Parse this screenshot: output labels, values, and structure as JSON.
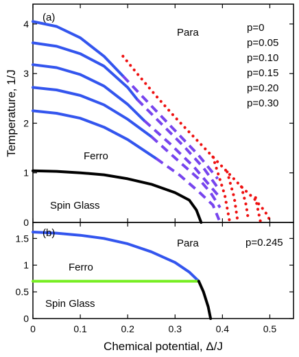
{
  "chart_data": [
    {
      "type": "line",
      "panel_label": "(a)",
      "xlabel": "",
      "ylabel": "Temperature, 1/J",
      "xlim": [
        0,
        0.55
      ],
      "ylim": [
        0,
        4.4
      ],
      "x_ticks": [
        "0",
        "0.1",
        "0.2",
        "0.3",
        "0.4",
        "0.5"
      ],
      "y_ticks": [
        "0",
        "1",
        "2",
        "3",
        "4"
      ],
      "legend": [
        "p=0",
        "p=0.05",
        "p=0.10",
        "p=0.15",
        "p=0.20",
        "p=0.30"
      ],
      "annotations": [
        "Para",
        "Ferro",
        "Spin Glass"
      ],
      "colors": {
        "second_order": "#3355ee",
        "first_order": "#7744ee",
        "tricritical_line": "#ee1111",
        "spin_glass_boundary": "#000000"
      },
      "series": [
        {
          "style": "solid",
          "color": "#3355ee",
          "x": [
            0,
            0.05,
            0.1,
            0.15,
            0.19
          ],
          "y": [
            4.05,
            3.95,
            3.72,
            3.35,
            2.95
          ]
        },
        {
          "style": "solid",
          "color": "#3355ee",
          "x": [
            0,
            0.05,
            0.1,
            0.15,
            0.2,
            0.22
          ],
          "y": [
            3.62,
            3.55,
            3.4,
            3.15,
            2.72,
            2.48
          ]
        },
        {
          "style": "solid",
          "color": "#3355ee",
          "x": [
            0,
            0.05,
            0.1,
            0.15,
            0.2,
            0.235
          ],
          "y": [
            3.18,
            3.12,
            2.98,
            2.75,
            2.38,
            2.05
          ]
        },
        {
          "style": "solid",
          "color": "#3355ee",
          "x": [
            0,
            0.05,
            0.1,
            0.15,
            0.2,
            0.25
          ],
          "y": [
            2.72,
            2.67,
            2.56,
            2.37,
            2.08,
            1.73
          ]
        },
        {
          "style": "solid",
          "color": "#3355ee",
          "x": [
            0,
            0.05,
            0.1,
            0.15,
            0.2,
            0.26
          ],
          "y": [
            2.25,
            2.2,
            2.1,
            1.92,
            1.67,
            1.29
          ]
        },
        {
          "style": "dashed",
          "color": "#7744ee",
          "x": [
            0.19,
            0.25,
            0.3,
            0.35,
            0.39
          ],
          "y": [
            2.95,
            2.35,
            1.85,
            1.35,
            0.88
          ]
        },
        {
          "style": "dashed",
          "color": "#7744ee",
          "x": [
            0.22,
            0.27,
            0.32,
            0.36,
            0.39
          ],
          "y": [
            2.48,
            2.0,
            1.52,
            1.1,
            0.7
          ]
        },
        {
          "style": "dashed",
          "color": "#7744ee",
          "x": [
            0.235,
            0.29,
            0.34,
            0.37,
            0.395
          ],
          "y": [
            2.05,
            1.58,
            1.12,
            0.78,
            0.5
          ]
        },
        {
          "style": "dashed",
          "color": "#7744ee",
          "x": [
            0.25,
            0.3,
            0.35,
            0.375,
            0.395
          ],
          "y": [
            1.73,
            1.3,
            0.88,
            0.6,
            0.3
          ]
        },
        {
          "style": "dashed",
          "color": "#7744ee",
          "x": [
            0.26,
            0.31,
            0.35,
            0.38,
            0.393
          ],
          "y": [
            1.29,
            0.95,
            0.62,
            0.35,
            0.05
          ]
        },
        {
          "style": "dotted",
          "color": "#ee1111",
          "x": [
            0.19,
            0.22,
            0.26,
            0.3,
            0.34,
            0.38,
            0.41,
            0.44,
            0.47,
            0.49,
            0.5
          ],
          "y": [
            3.35,
            3.0,
            2.55,
            2.12,
            1.72,
            1.32,
            1.02,
            0.72,
            0.45,
            0.22,
            0.05
          ]
        },
        {
          "style": "dotted",
          "color": "#ee1111",
          "x": [
            0.47,
            0.475,
            0.48
          ],
          "y": [
            0.5,
            0.25,
            0.03
          ]
        },
        {
          "style": "dotted",
          "color": "#ee1111",
          "x": [
            0.44,
            0.45,
            0.455
          ],
          "y": [
            0.72,
            0.35,
            0.03
          ]
        },
        {
          "style": "dotted",
          "color": "#ee1111",
          "x": [
            0.41,
            0.425,
            0.432
          ],
          "y": [
            1.02,
            0.5,
            0.03
          ]
        },
        {
          "style": "dotted",
          "color": "#ee1111",
          "x": [
            0.38,
            0.405,
            0.415
          ],
          "y": [
            1.32,
            0.55,
            0.03
          ]
        },
        {
          "style": "solid",
          "color": "#000000",
          "x": [
            0,
            0.05,
            0.1,
            0.15,
            0.2,
            0.25,
            0.3,
            0.33,
            0.345,
            0.355
          ],
          "y": [
            1.04,
            1.03,
            1.0,
            0.96,
            0.88,
            0.77,
            0.6,
            0.45,
            0.25,
            0.0
          ]
        }
      ]
    },
    {
      "type": "line",
      "panel_label": "(b)",
      "xlabel": "Chemical potential, Δ/J",
      "ylabel": "",
      "xlim": [
        0,
        0.55
      ],
      "ylim": [
        0,
        1.8
      ],
      "x_ticks": [
        "0",
        "0.1",
        "0.2",
        "0.3",
        "0.4",
        "0.5"
      ],
      "y_ticks": [
        "0",
        "0.5",
        "1",
        "1.5"
      ],
      "legend": [
        "p=0.245"
      ],
      "annotations": [
        "Para",
        "Ferro",
        "Spin Glass"
      ],
      "colors": {
        "ferro_para": "#3355ee",
        "spin_glass_ferro": "#77ee22",
        "spin_glass_para": "#000000"
      },
      "series": [
        {
          "style": "solid",
          "color": "#3355ee",
          "x": [
            0,
            0.05,
            0.1,
            0.15,
            0.2,
            0.25,
            0.3,
            0.33,
            0.35
          ],
          "y": [
            1.62,
            1.6,
            1.56,
            1.5,
            1.4,
            1.25,
            1.05,
            0.87,
            0.7
          ]
        },
        {
          "style": "solid",
          "color": "#77ee22",
          "x": [
            0,
            0.35
          ],
          "y": [
            0.7,
            0.7
          ]
        },
        {
          "style": "solid",
          "color": "#000000",
          "x": [
            0.35,
            0.36,
            0.37,
            0.375
          ],
          "y": [
            0.7,
            0.5,
            0.22,
            0.0
          ]
        }
      ]
    }
  ]
}
